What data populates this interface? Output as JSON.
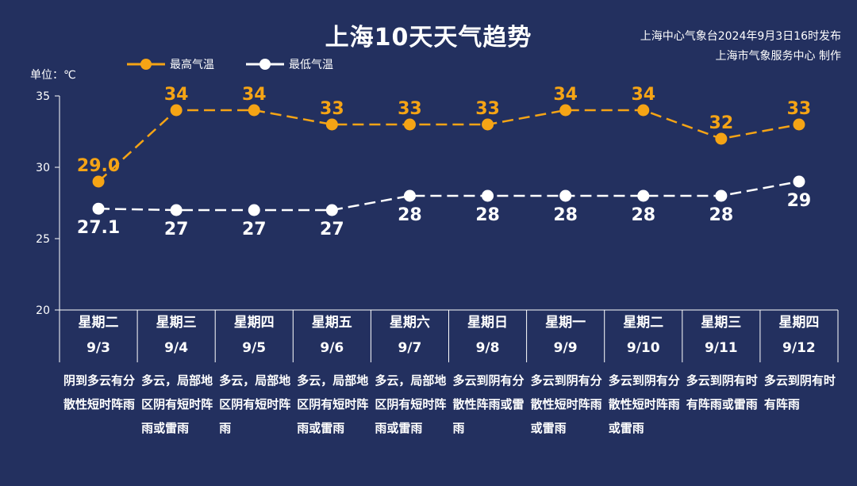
{
  "title": "上海10天天气趋势",
  "source_line1": "上海中心气象台2024年9月3日16时发布",
  "source_line2": "上海市气象服务中心 制作",
  "unit_label": "单位：℃",
  "colors": {
    "high": "#f5a415",
    "low": "#ffffff",
    "background": "#23305f"
  },
  "chart_data": {
    "type": "line",
    "categories": [
      "9/3",
      "9/4",
      "9/5",
      "9/6",
      "9/7",
      "9/8",
      "9/9",
      "9/10",
      "9/11",
      "9/12"
    ],
    "weekdays": [
      "星期二",
      "星期三",
      "星期四",
      "星期五",
      "星期六",
      "星期日",
      "星期一",
      "星期二",
      "星期三",
      "星期四"
    ],
    "series": [
      {
        "name": "最高气温",
        "values": [
          29.0,
          34,
          34,
          33,
          33,
          33,
          34,
          34,
          32,
          33
        ],
        "labels": [
          "29.0",
          "34",
          "34",
          "33",
          "33",
          "33",
          "34",
          "34",
          "32",
          "33"
        ]
      },
      {
        "name": "最低气温",
        "values": [
          27.1,
          27,
          27,
          27,
          28,
          28,
          28,
          28,
          28,
          29
        ],
        "labels": [
          "27.1",
          "27",
          "27",
          "27",
          "28",
          "28",
          "28",
          "28",
          "28",
          "29"
        ]
      }
    ],
    "ylim": [
      20,
      35
    ],
    "yticks": [
      "20",
      "25",
      "30",
      "35"
    ],
    "descriptions": [
      "阴到多云有分散性短时阵雨",
      "多云，局部地区阴有短时阵雨或雷雨",
      "多云，局部地区阴有短时阵雨",
      "多云，局部地区阴有短时阵雨或雷雨",
      "多云，局部地区阴有短时阵雨或雷雨",
      "多云到阴有分散性阵雨或雷雨",
      "多云到阴有分散性短时阵雨或雷雨",
      "多云到阴有分散性短时阵雨或雷雨",
      "多云到阴有时有阵雨或雷雨",
      "多云到阴有时有阵雨"
    ],
    "legend_position": "top-left",
    "grid": false
  }
}
